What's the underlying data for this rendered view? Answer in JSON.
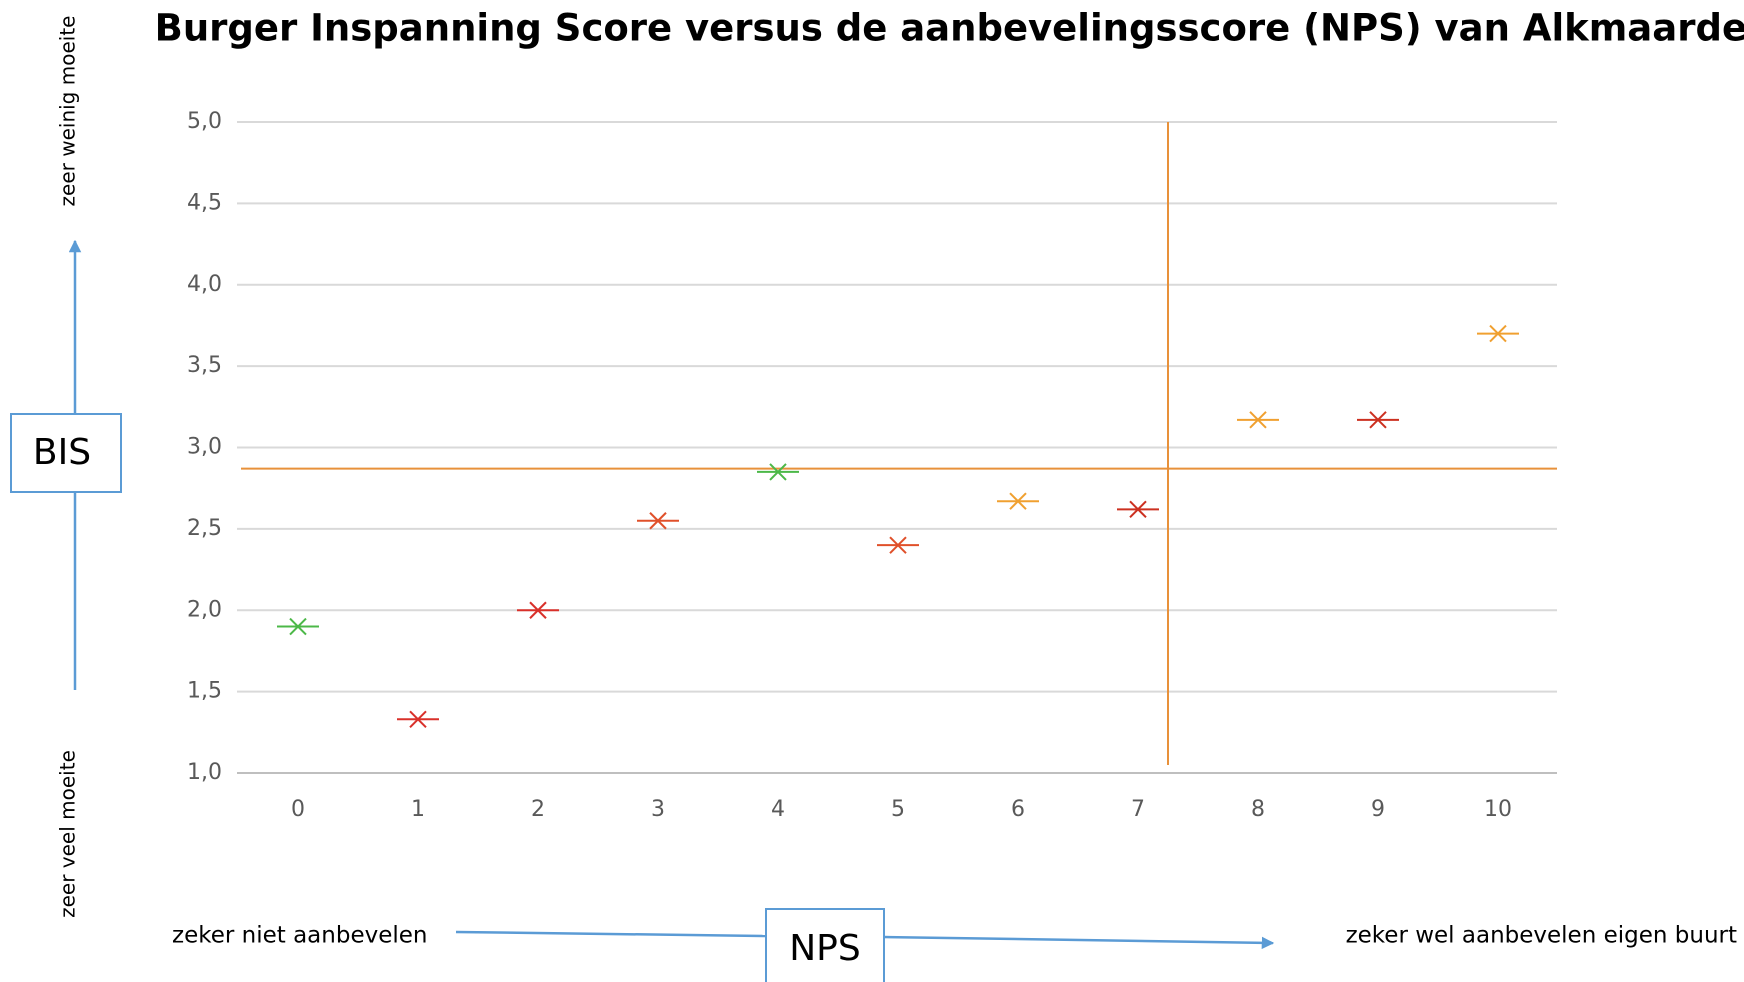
{
  "chart_data": {
    "type": "scatter",
    "title": "Burger Inspanning Score versus de aanbevelingsscore (NPS) van Alkmaarders",
    "categories": [
      "0",
      "1",
      "2",
      "3",
      "4",
      "5",
      "6",
      "7",
      "8",
      "9",
      "10"
    ],
    "values": [
      1.9,
      1.33,
      2.0,
      2.55,
      2.85,
      2.4,
      2.67,
      2.62,
      3.17,
      3.17,
      3.7
    ],
    "colors": [
      "#4cb848",
      "#d9302a",
      "#d9302a",
      "#e0502a",
      "#4cb848",
      "#e0502a",
      "#f0a030",
      "#cc3020",
      "#f0a030",
      "#cc3020",
      "#f0a030"
    ],
    "ylim": [
      1.0,
      5.0
    ],
    "yticks": [
      {
        "value": 1.0,
        "label": "1,0"
      },
      {
        "value": 1.5,
        "label": "1,5"
      },
      {
        "value": 2.0,
        "label": "2,0"
      },
      {
        "value": 2.5,
        "label": "2,5"
      },
      {
        "value": 3.0,
        "label": "3,0"
      },
      {
        "value": 3.5,
        "label": "3,5"
      },
      {
        "value": 4.0,
        "label": "4,0"
      },
      {
        "value": 4.5,
        "label": "4,5"
      },
      {
        "value": 5.0,
        "label": "5,0"
      }
    ],
    "grid": true,
    "reference_y": 2.87,
    "reference_x": 7.25,
    "reference_color": "#e8913a",
    "y_axis_label": "BIS",
    "x_axis_label": "NPS",
    "y_top_note": "zeer weinig moeite",
    "y_bottom_note": "zeer veel moeite",
    "x_left_note": "zeker niet aanbevelen",
    "x_right_note": "zeker wel aanbevelen eigen buurt"
  }
}
